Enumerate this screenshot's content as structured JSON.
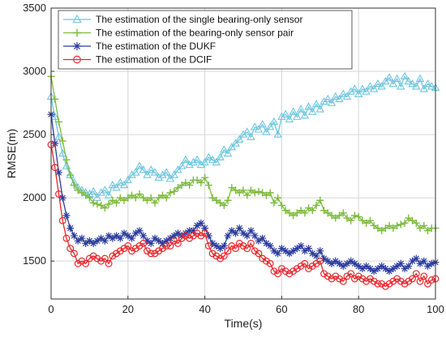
{
  "chart_data": {
    "type": "line",
    "xlabel": "Time(s)",
    "ylabel": "RMSE(m)",
    "xlim": [
      0,
      100
    ],
    "ylim": [
      1200,
      3500
    ],
    "xticks": [
      0,
      20,
      40,
      60,
      80,
      100
    ],
    "yticks": [
      1500,
      2000,
      2500,
      3000,
      3500
    ],
    "grid": true,
    "legend_position": "top-left",
    "series": [
      {
        "name": "The estimation of the single bearing-only sensor",
        "color": "#6cc5de",
        "marker": "triangle",
        "x": [
          0,
          1,
          2,
          3,
          4,
          5,
          6,
          7,
          8,
          9,
          10,
          11,
          12,
          13,
          14,
          15,
          16,
          17,
          18,
          19,
          20,
          21,
          22,
          23,
          24,
          25,
          26,
          27,
          28,
          29,
          30,
          31,
          32,
          33,
          34,
          35,
          36,
          37,
          38,
          39,
          40,
          41,
          42,
          43,
          44,
          45,
          46,
          47,
          48,
          49,
          50,
          51,
          52,
          53,
          54,
          55,
          56,
          57,
          58,
          59,
          60,
          61,
          62,
          63,
          64,
          65,
          66,
          67,
          68,
          69,
          70,
          71,
          72,
          73,
          74,
          75,
          76,
          77,
          78,
          79,
          80,
          81,
          82,
          83,
          84,
          85,
          86,
          87,
          88,
          89,
          90,
          91,
          92,
          93,
          94,
          95,
          96,
          97,
          98,
          99,
          100
        ],
        "y": [
          2800,
          2640,
          2480,
          2350,
          2250,
          2180,
          2120,
          2080,
          2060,
          2040,
          2030,
          2050,
          2000,
          2040,
          2060,
          2020,
          2100,
          2080,
          2120,
          2100,
          2140,
          2180,
          2200,
          2250,
          2220,
          2180,
          2220,
          2200,
          2160,
          2180,
          2200,
          2150,
          2180,
          2220,
          2250,
          2300,
          2260,
          2280,
          2300,
          2260,
          2280,
          2320,
          2300,
          2280,
          2320,
          2380,
          2350,
          2400,
          2430,
          2460,
          2500,
          2520,
          2480,
          2560,
          2540,
          2580,
          2520,
          2560,
          2600,
          2500,
          2640,
          2660,
          2620,
          2680,
          2640,
          2700,
          2650,
          2720,
          2680,
          2740,
          2700,
          2760,
          2780,
          2750,
          2800,
          2780,
          2820,
          2800,
          2840,
          2860,
          2820,
          2860,
          2840,
          2880,
          2860,
          2900,
          2880,
          2920,
          2950,
          2900,
          2940,
          2880,
          2960,
          2920,
          2900,
          2880,
          2940,
          2860,
          2900,
          2880,
          2870
        ]
      },
      {
        "name": "The estimation of the bearing-only sensor pair",
        "color": "#7dbb3f",
        "marker": "plus",
        "x": [
          0,
          1,
          2,
          3,
          4,
          5,
          6,
          7,
          8,
          9,
          10,
          11,
          12,
          13,
          14,
          15,
          16,
          17,
          18,
          19,
          20,
          21,
          22,
          23,
          24,
          25,
          26,
          27,
          28,
          29,
          30,
          31,
          32,
          33,
          34,
          35,
          36,
          37,
          38,
          39,
          40,
          41,
          42,
          43,
          44,
          45,
          46,
          47,
          48,
          49,
          50,
          51,
          52,
          53,
          54,
          55,
          56,
          57,
          58,
          59,
          60,
          61,
          62,
          63,
          64,
          65,
          66,
          67,
          68,
          69,
          70,
          71,
          72,
          73,
          74,
          75,
          76,
          77,
          78,
          79,
          80,
          81,
          82,
          83,
          84,
          85,
          86,
          87,
          88,
          89,
          90,
          91,
          92,
          93,
          94,
          95,
          96,
          97,
          98,
          99,
          100
        ],
        "y": [
          2960,
          2780,
          2600,
          2450,
          2300,
          2180,
          2100,
          2060,
          2040,
          2020,
          2000,
          1960,
          1950,
          1940,
          1920,
          1950,
          1980,
          1960,
          2000,
          1980,
          2000,
          2020,
          2000,
          2030,
          2000,
          1980,
          2000,
          1960,
          2000,
          2020,
          2000,
          2040,
          2050,
          2080,
          2100,
          2120,
          2100,
          2140,
          2140,
          2120,
          2160,
          2100,
          2000,
          1980,
          1960,
          1940,
          1980,
          2080,
          2060,
          2040,
          2060,
          2020,
          2060,
          2040,
          2050,
          2040,
          2020,
          2040,
          1960,
          2000,
          1940,
          1900,
          1880,
          1860,
          1880,
          1900,
          1880,
          1920,
          1900,
          1940,
          1980,
          1900,
          1880,
          1860,
          1840,
          1860,
          1880,
          1840,
          1820,
          1860,
          1850,
          1820,
          1800,
          1820,
          1780,
          1760,
          1740,
          1760,
          1780,
          1760,
          1780,
          1790,
          1800,
          1840,
          1820,
          1800,
          1760,
          1780,
          1740,
          1760,
          1760
        ]
      },
      {
        "name": "The estimation of the DUKF",
        "color": "#2b3c9c",
        "marker": "asterisk",
        "x": [
          0,
          1,
          2,
          3,
          4,
          5,
          6,
          7,
          8,
          9,
          10,
          11,
          12,
          13,
          14,
          15,
          16,
          17,
          18,
          19,
          20,
          21,
          22,
          23,
          24,
          25,
          26,
          27,
          28,
          29,
          30,
          31,
          32,
          33,
          34,
          35,
          36,
          37,
          38,
          39,
          40,
          41,
          42,
          43,
          44,
          45,
          46,
          47,
          48,
          49,
          50,
          51,
          52,
          53,
          54,
          55,
          56,
          57,
          58,
          59,
          60,
          61,
          62,
          63,
          64,
          65,
          66,
          67,
          68,
          69,
          70,
          71,
          72,
          73,
          74,
          75,
          76,
          77,
          78,
          79,
          80,
          81,
          82,
          83,
          84,
          85,
          86,
          87,
          88,
          89,
          90,
          91,
          92,
          93,
          94,
          95,
          96,
          97,
          98,
          99,
          100
        ],
        "y": [
          2660,
          2430,
          2200,
          2000,
          1860,
          1760,
          1700,
          1660,
          1680,
          1640,
          1660,
          1640,
          1660,
          1680,
          1660,
          1700,
          1680,
          1700,
          1680,
          1720,
          1700,
          1680,
          1720,
          1740,
          1700,
          1660,
          1640,
          1680,
          1660,
          1640,
          1660,
          1680,
          1700,
          1720,
          1700,
          1720,
          1740,
          1740,
          1780,
          1800,
          1760,
          1700,
          1640,
          1620,
          1600,
          1620,
          1700,
          1740,
          1720,
          1760,
          1720,
          1700,
          1740,
          1700,
          1660,
          1680,
          1640,
          1620,
          1580,
          1560,
          1600,
          1580,
          1560,
          1580,
          1600,
          1620,
          1580,
          1600,
          1560,
          1540,
          1580,
          1520,
          1500,
          1480,
          1500,
          1480,
          1460,
          1480,
          1500,
          1480,
          1460,
          1440,
          1460,
          1440,
          1420,
          1440,
          1460,
          1440,
          1420,
          1440,
          1460,
          1480,
          1440,
          1460,
          1500,
          1520,
          1480,
          1500,
          1460,
          1480,
          1490
        ]
      },
      {
        "name": "The estimation of the DCIF",
        "color": "#e8262b",
        "marker": "circle",
        "x": [
          0,
          1,
          2,
          3,
          4,
          5,
          6,
          7,
          8,
          9,
          10,
          11,
          12,
          13,
          14,
          15,
          16,
          17,
          18,
          19,
          20,
          21,
          22,
          23,
          24,
          25,
          26,
          27,
          28,
          29,
          30,
          31,
          32,
          33,
          34,
          35,
          36,
          37,
          38,
          39,
          40,
          41,
          42,
          43,
          44,
          45,
          46,
          47,
          48,
          49,
          50,
          51,
          52,
          53,
          54,
          55,
          56,
          57,
          58,
          59,
          60,
          61,
          62,
          63,
          64,
          65,
          66,
          67,
          68,
          69,
          70,
          71,
          72,
          73,
          74,
          75,
          76,
          77,
          78,
          79,
          80,
          81,
          82,
          83,
          84,
          85,
          86,
          87,
          88,
          89,
          90,
          91,
          92,
          93,
          94,
          95,
          96,
          97,
          98,
          99,
          100
        ],
        "y": [
          2420,
          2240,
          2030,
          1820,
          1680,
          1600,
          1560,
          1480,
          1500,
          1480,
          1520,
          1540,
          1520,
          1500,
          1520,
          1480,
          1540,
          1560,
          1580,
          1600,
          1620,
          1580,
          1600,
          1620,
          1640,
          1580,
          1560,
          1560,
          1580,
          1600,
          1620,
          1620,
          1660,
          1640,
          1680,
          1700,
          1680,
          1700,
          1720,
          1700,
          1720,
          1620,
          1560,
          1540,
          1520,
          1540,
          1580,
          1620,
          1600,
          1640,
          1620,
          1600,
          1640,
          1580,
          1560,
          1520,
          1500,
          1480,
          1420,
          1400,
          1440,
          1420,
          1400,
          1420,
          1440,
          1460,
          1480,
          1440,
          1460,
          1480,
          1500,
          1400,
          1380,
          1360,
          1380,
          1360,
          1340,
          1380,
          1400,
          1360,
          1380,
          1360,
          1340,
          1360,
          1340,
          1320,
          1320,
          1300,
          1320,
          1340,
          1360,
          1340,
          1320,
          1340,
          1360,
          1400,
          1340,
          1380,
          1320,
          1350,
          1360
        ]
      }
    ]
  }
}
